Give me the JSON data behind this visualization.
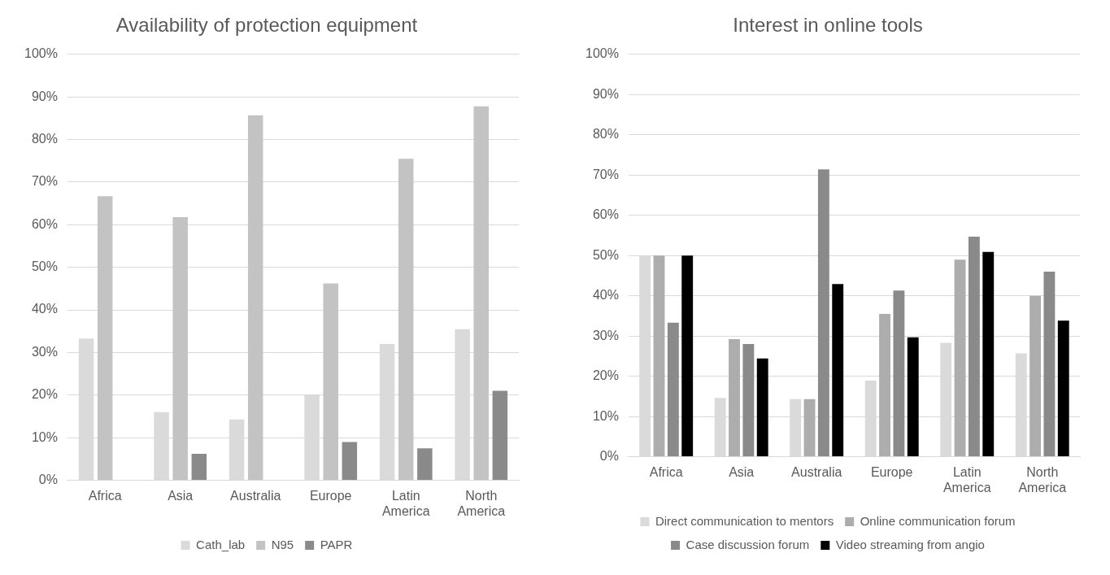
{
  "chart_data": [
    {
      "type": "bar",
      "title": "Availability of protection equipment",
      "categories": [
        "Africa",
        "Asia",
        "Australia",
        "Europe",
        [
          "Latin",
          "America"
        ],
        [
          "North",
          "America"
        ]
      ],
      "series": [
        {
          "name": "Cath_lab",
          "color": "#dadada",
          "values": [
            33.3,
            16,
            14.3,
            20,
            32,
            35.5
          ]
        },
        {
          "name": "N95",
          "color": "#c3c3c3",
          "values": [
            66.7,
            61.8,
            85.7,
            46.2,
            75.5,
            87.8
          ]
        },
        {
          "name": "PAPR",
          "color": "#8a8a8a",
          "values": [
            0,
            6.2,
            0,
            9,
            7.5,
            21
          ]
        }
      ],
      "ylim": [
        0,
        100
      ],
      "yticks": [
        {
          "value": 0,
          "label": "0%"
        },
        {
          "value": 10,
          "label": "10%"
        },
        {
          "value": 20,
          "label": "20%"
        },
        {
          "value": 30,
          "label": "30%"
        },
        {
          "value": 40,
          "label": "40%"
        },
        {
          "value": 50,
          "label": "50%"
        },
        {
          "value": 60,
          "label": "60%"
        },
        {
          "value": 70,
          "label": "70%"
        },
        {
          "value": 80,
          "label": "80%"
        },
        {
          "value": 90,
          "label": "90%"
        },
        {
          "value": 100,
          "label": "100%"
        }
      ],
      "grid": "y",
      "legend": "bottom"
    },
    {
      "type": "bar",
      "title": "Interest in online tools",
      "categories": [
        "Africa",
        "Asia",
        "Australia",
        "Europe",
        [
          "Latin",
          "America"
        ],
        [
          "North",
          "America"
        ]
      ],
      "series": [
        {
          "name": "Direct communication to mentors",
          "color": "#dadada",
          "values": [
            50,
            14.6,
            14.3,
            18.9,
            28.3,
            25.7
          ]
        },
        {
          "name": "Online communication forum",
          "color": "#adadad",
          "values": [
            50,
            29.2,
            14.3,
            35.5,
            49,
            40
          ]
        },
        {
          "name": "Case discussion forum",
          "color": "#8a8a8a",
          "values": [
            33.3,
            28,
            71.4,
            41.3,
            54.7,
            46
          ]
        },
        {
          "name": "Video streaming from angio",
          "color": "#000000",
          "values": [
            50,
            24.4,
            42.9,
            29.7,
            50.9,
            33.8
          ]
        }
      ],
      "ylim": [
        0,
        100
      ],
      "yticks": [
        {
          "value": 0,
          "label": "0%"
        },
        {
          "value": 10,
          "label": "10%"
        },
        {
          "value": 20,
          "label": "20%"
        },
        {
          "value": 30,
          "label": "30%"
        },
        {
          "value": 40,
          "label": "40%"
        },
        {
          "value": 50,
          "label": "50%"
        },
        {
          "value": 60,
          "label": "60%"
        },
        {
          "value": 70,
          "label": "70%"
        },
        {
          "value": 80,
          "label": "80%"
        },
        {
          "value": 90,
          "label": "90%"
        },
        {
          "value": 100,
          "label": "100%"
        }
      ],
      "grid": "y",
      "legend": "bottom"
    }
  ]
}
